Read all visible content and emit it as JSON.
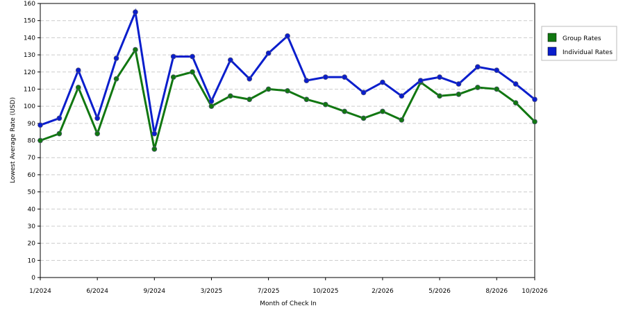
{
  "chart_data": {
    "type": "line",
    "x_label": "Month of Check In",
    "y_label": "Lowest Average Rate (USD)",
    "categories": [
      "1/2024",
      null,
      null,
      "6/2024",
      null,
      null,
      "9/2024",
      null,
      null,
      "3/2025",
      null,
      null,
      "7/2025",
      null,
      null,
      "10/2025",
      null,
      null,
      "2/2026",
      null,
      null,
      "5/2026",
      null,
      null,
      "8/2026",
      null,
      "10/2026"
    ],
    "series": [
      {
        "name": "Group Rates",
        "color": "#117711",
        "values": [
          80,
          84,
          111,
          84,
          116,
          133,
          75,
          117,
          120,
          100,
          106,
          104,
          110,
          109,
          104,
          101,
          97,
          93,
          97,
          92,
          114,
          106,
          107,
          111,
          110,
          102,
          91
        ]
      },
      {
        "name": "Individual Rates",
        "color": "#0a1ecc",
        "values": [
          89,
          93,
          121,
          93,
          128,
          155,
          84,
          129,
          129,
          103,
          127,
          116,
          131,
          141,
          115,
          117,
          117,
          108,
          114,
          106,
          115,
          117,
          113,
          123,
          121,
          113,
          104
        ]
      }
    ],
    "ylim": [
      0,
      160
    ],
    "yticks": [
      0,
      10,
      20,
      30,
      40,
      50,
      60,
      70,
      80,
      90,
      100,
      110,
      120,
      130,
      140,
      150,
      160
    ],
    "grid": true,
    "legend": "right"
  }
}
